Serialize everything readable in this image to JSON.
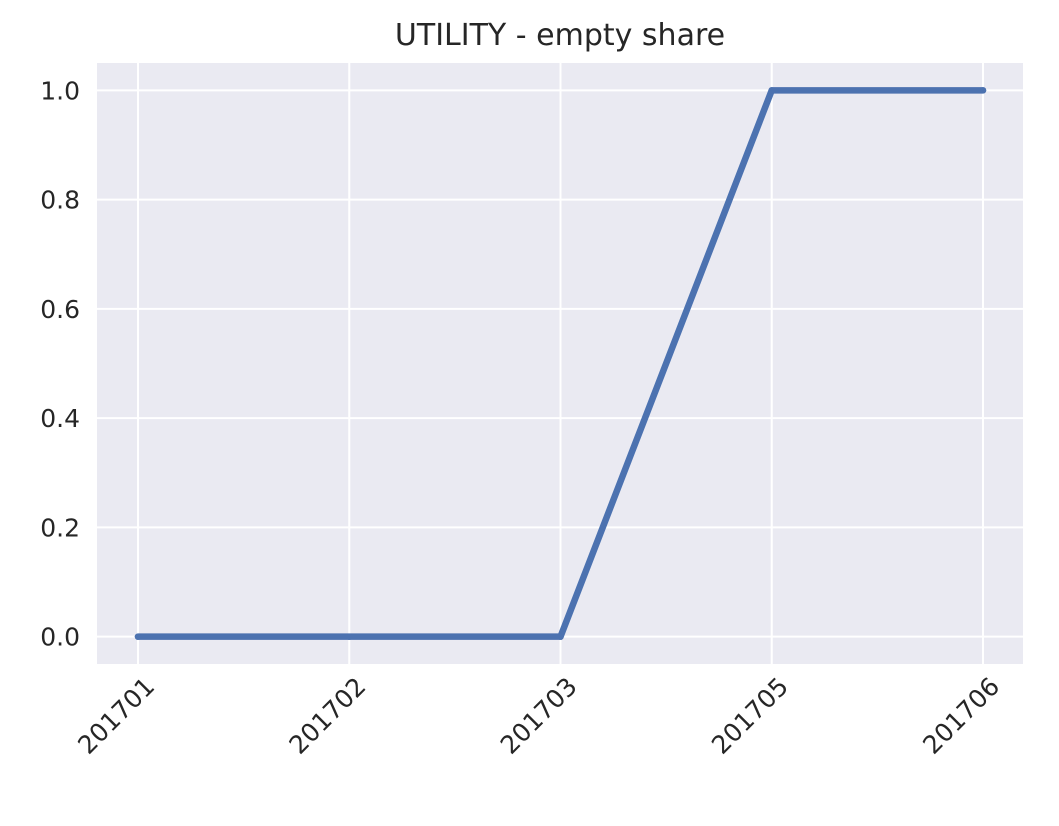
{
  "chart_data": {
    "type": "line",
    "title": "UTILITY - empty share",
    "xlabel": "",
    "ylabel": "",
    "categories": [
      "201701",
      "201702",
      "201703",
      "201705",
      "201706"
    ],
    "series": [
      {
        "values": [
          0.0,
          0.0,
          0.0,
          1.0,
          1.0
        ]
      }
    ],
    "ylim": [
      -0.05,
      1.05
    ],
    "yticks": [
      0.0,
      0.2,
      0.4,
      0.6,
      0.8,
      1.0
    ],
    "ytick_labels": [
      "0.0",
      "0.2",
      "0.4",
      "0.6",
      "0.8",
      "1.0"
    ],
    "grid": true,
    "legend": "none",
    "colors": {
      "plot_background": "#EAEAF2",
      "grid": "#FFFFFF",
      "line": "#4C72B0",
      "text": "#262626"
    }
  }
}
